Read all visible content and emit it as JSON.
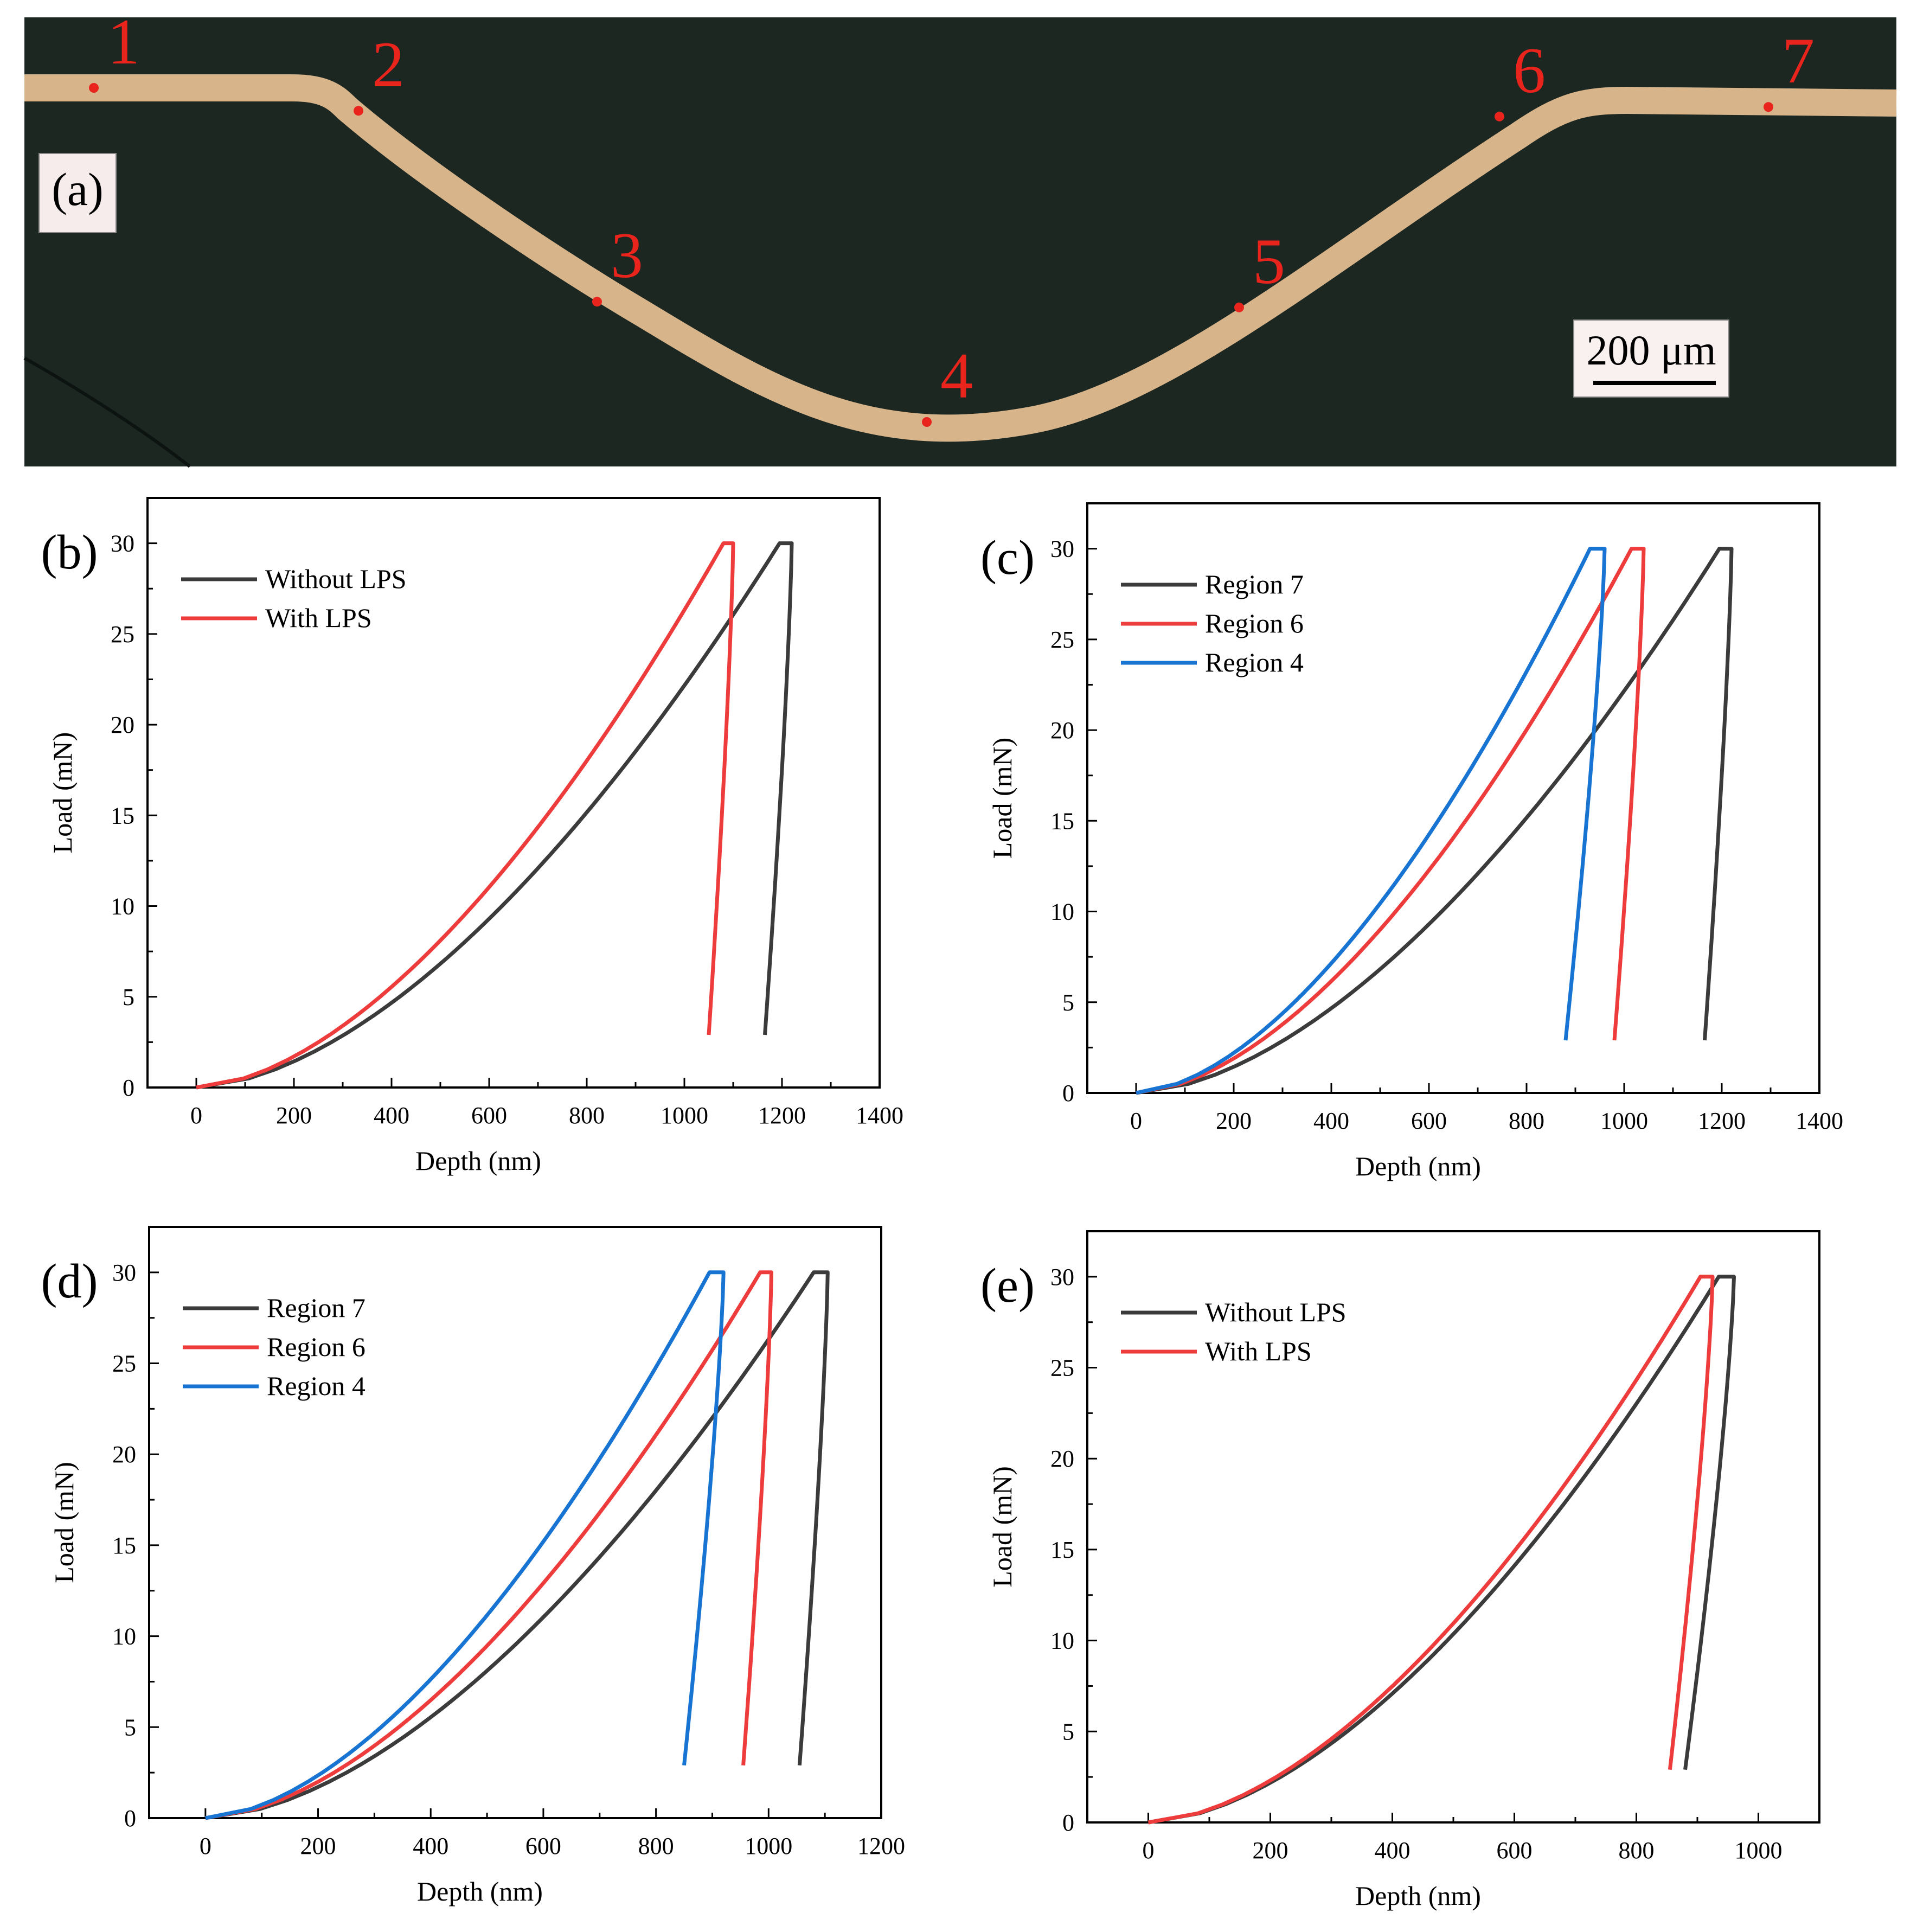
{
  "colors": {
    "micrograph_bg": "#1c2722",
    "strip": "#d8b48a",
    "marker": "#e8241c",
    "series_black": "#3b3b3b",
    "series_red": "#ee3b3b",
    "series_blue": "#1874d2"
  },
  "micrograph": {
    "panel_label": "(a)",
    "points": [
      {
        "label": "1",
        "x_um": 40,
        "y_um": 0
      },
      {
        "label": "2",
        "x_um": 345,
        "y_um": 24
      },
      {
        "label": "3",
        "x_um": 620,
        "y_um": 224
      },
      {
        "label": "4",
        "x_um": 1000,
        "y_um": 350
      },
      {
        "label": "5",
        "x_um": 1360,
        "y_um": 230
      },
      {
        "label": "6",
        "x_um": 1660,
        "y_um": 30
      },
      {
        "label": "7",
        "x_um": 1970,
        "y_um": 20
      }
    ],
    "scale_bar_label": "200 μm"
  },
  "chart_data": [
    {
      "panel_label": "(b)",
      "type": "line",
      "xlabel": "Depth (nm)",
      "ylabel": "Load (mN)",
      "xlim": [
        -100,
        1400
      ],
      "ylim": [
        0,
        32.5
      ],
      "xticks": [
        0,
        200,
        400,
        600,
        800,
        1000,
        1200,
        1400
      ],
      "yticks": [
        0,
        5,
        10,
        15,
        20,
        25,
        30
      ],
      "legend": "top-left",
      "series": [
        {
          "name": "Without LPS",
          "color": "series_black",
          "load_max_depth": 1195,
          "hold_depth": 1220,
          "unload_end_depth": 1165,
          "unload_end_load": 2.9
        },
        {
          "name": "With LPS",
          "color": "series_red",
          "load_max_depth": 1080,
          "hold_depth": 1100,
          "unload_end_depth": 1050,
          "unload_end_load": 2.9
        }
      ]
    },
    {
      "panel_label": "(c)",
      "type": "line",
      "xlabel": "Depth (nm)",
      "ylabel": "Load (mN)",
      "xlim": [
        -100,
        1400
      ],
      "ylim": [
        0,
        32.5
      ],
      "xticks": [
        0,
        200,
        400,
        600,
        800,
        1000,
        1200,
        1400
      ],
      "yticks": [
        0,
        5,
        10,
        15,
        20,
        25,
        30
      ],
      "legend": "top-left",
      "series": [
        {
          "name": "Region 7",
          "color": "series_black",
          "load_max_depth": 1195,
          "hold_depth": 1220,
          "unload_end_depth": 1165,
          "unload_end_load": 2.9
        },
        {
          "name": "Region 6",
          "color": "series_red",
          "load_max_depth": 1015,
          "hold_depth": 1040,
          "unload_end_depth": 980,
          "unload_end_load": 2.9
        },
        {
          "name": "Region 4",
          "color": "series_blue",
          "load_max_depth": 930,
          "hold_depth": 960,
          "unload_end_depth": 880,
          "unload_end_load": 2.9
        }
      ]
    },
    {
      "panel_label": "(d)",
      "type": "line",
      "xlabel": "Depth (nm)",
      "ylabel": "Load (mN)",
      "xlim": [
        -100,
        1200
      ],
      "ylim": [
        0,
        32.5
      ],
      "xticks": [
        0,
        200,
        400,
        600,
        800,
        1000,
        1200
      ],
      "yticks": [
        0,
        5,
        10,
        15,
        20,
        25,
        30
      ],
      "legend": "top-left",
      "series": [
        {
          "name": "Region 7",
          "color": "series_black",
          "load_max_depth": 1080,
          "hold_depth": 1105,
          "unload_end_depth": 1055,
          "unload_end_load": 2.9
        },
        {
          "name": "Region 6",
          "color": "series_red",
          "load_max_depth": 985,
          "hold_depth": 1005,
          "unload_end_depth": 955,
          "unload_end_load": 2.9
        },
        {
          "name": "Region 4",
          "color": "series_blue",
          "load_max_depth": 895,
          "hold_depth": 920,
          "unload_end_depth": 850,
          "unload_end_load": 2.9
        }
      ]
    },
    {
      "panel_label": "(e)",
      "type": "line",
      "xlabel": "Depth (nm)",
      "ylabel": "Load (mN)",
      "xlim": [
        -100,
        1100
      ],
      "ylim": [
        0,
        32.5
      ],
      "xticks": [
        0,
        200,
        400,
        600,
        800,
        1000
      ],
      "yticks": [
        0,
        5,
        10,
        15,
        20,
        25,
        30
      ],
      "legend": "top-left",
      "series": [
        {
          "name": "Without LPS",
          "color": "series_black",
          "load_max_depth": 935,
          "hold_depth": 960,
          "unload_end_depth": 880,
          "unload_end_load": 2.9
        },
        {
          "name": "With LPS",
          "color": "series_red",
          "load_max_depth": 905,
          "hold_depth": 925,
          "unload_end_depth": 855,
          "unload_end_load": 2.9
        }
      ]
    }
  ]
}
